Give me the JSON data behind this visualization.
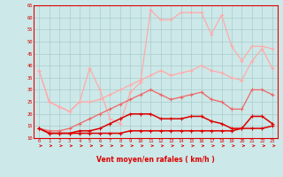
{
  "x": [
    0,
    1,
    2,
    3,
    4,
    5,
    6,
    7,
    8,
    9,
    10,
    11,
    12,
    13,
    14,
    15,
    16,
    17,
    18,
    19,
    20,
    21,
    22,
    23
  ],
  "line_flat": [
    14,
    12,
    12,
    12,
    12,
    12,
    12,
    12,
    12,
    13,
    13,
    13,
    13,
    13,
    13,
    13,
    13,
    13,
    13,
    13,
    14,
    14,
    14,
    15
  ],
  "line_low": [
    14,
    12,
    12,
    12,
    13,
    13,
    14,
    16,
    18,
    20,
    20,
    20,
    18,
    18,
    18,
    19,
    19,
    17,
    16,
    14,
    14,
    19,
    19,
    16
  ],
  "line_mid": [
    14,
    13,
    13,
    14,
    16,
    18,
    20,
    22,
    24,
    26,
    28,
    30,
    28,
    26,
    27,
    28,
    29,
    26,
    25,
    22,
    22,
    30,
    30,
    28
  ],
  "line_high1": [
    38,
    25,
    23,
    21,
    25,
    25,
    26,
    28,
    30,
    32,
    34,
    36,
    38,
    36,
    37,
    38,
    40,
    38,
    37,
    35,
    34,
    42,
    47,
    39
  ],
  "line_high2": [
    38,
    25,
    23,
    21,
    25,
    39,
    30,
    18,
    16,
    29,
    33,
    63,
    59,
    59,
    62,
    62,
    62,
    53,
    61,
    48,
    42,
    48,
    48,
    47
  ],
  "bg_color": "#cce8e8",
  "grid_color": "#aacccc",
  "c_dark": "#dd0000",
  "c_mid": "#ee6666",
  "c_light": "#ffaaaa",
  "xlabel": "Vent moyen/en rafales ( km/h )",
  "ylim": [
    10,
    65
  ],
  "xlim_min": -0.5,
  "xlim_max": 23.5,
  "yticks": [
    10,
    15,
    20,
    25,
    30,
    35,
    40,
    45,
    50,
    55,
    60,
    65
  ],
  "xticks": [
    0,
    1,
    2,
    3,
    4,
    5,
    6,
    7,
    8,
    9,
    10,
    11,
    12,
    13,
    14,
    15,
    16,
    17,
    18,
    19,
    20,
    21,
    22,
    23
  ]
}
